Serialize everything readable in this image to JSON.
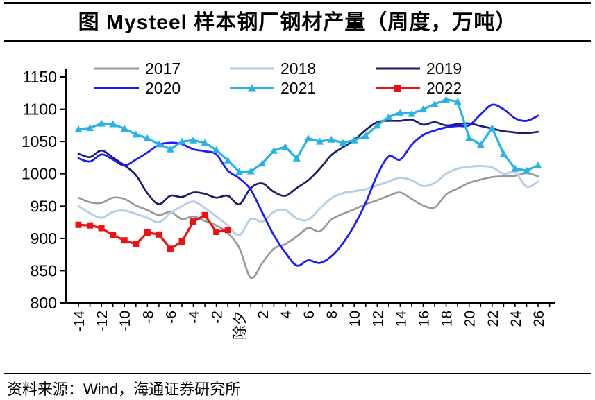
{
  "figure": {
    "title": "图 Mysteel 样本钢厂钢材产量（周度，万吨）",
    "source": "资料来源：Wind，海通证券研究所"
  },
  "chart_data": {
    "type": "line",
    "title": "图 Mysteel 样本钢厂钢材产量（周度，万吨）",
    "xlabel": "",
    "ylabel": "",
    "x_axis": {
      "min": -14,
      "max": 27,
      "unit": "weeks relative to Chinese New Year's Eve",
      "zero_label": "除夕",
      "major_tick_step": 2,
      "minor_tick_step": 1
    },
    "x_major_ticks": [
      -14,
      -12,
      -10,
      -8,
      -6,
      -4,
      -2,
      0,
      2,
      4,
      6,
      8,
      10,
      12,
      14,
      16,
      18,
      20,
      22,
      24,
      26
    ],
    "ylim": [
      800,
      1150
    ],
    "y_ticks": [
      800,
      850,
      900,
      950,
      1000,
      1050,
      1100,
      1150
    ],
    "grid": false,
    "legend_position": "top",
    "series": [
      {
        "name": "2017",
        "color": "#999999",
        "marker": "none",
        "line_width": 2.7,
        "x_start": -14,
        "values": [
          963,
          956,
          955,
          963,
          961,
          951,
          944,
          936,
          941,
          930,
          934,
          927,
          920,
          908,
          885,
          839,
          862,
          884,
          891,
          903,
          916,
          911,
          929,
          938,
          945,
          953,
          959,
          966,
          971,
          961,
          951,
          948,
          968,
          977,
          986,
          991,
          995,
          996,
          997,
          1001,
          996
        ]
      },
      {
        "name": "2018",
        "color": "#b4cfe6",
        "marker": "none",
        "line_width": 3.0,
        "x_start": -14,
        "values": [
          950,
          939,
          932,
          941,
          943,
          938,
          932,
          925,
          939,
          950,
          957,
          947,
          934,
          920,
          905,
          930,
          926,
          941,
          944,
          931,
          929,
          946,
          962,
          970,
          973,
          976,
          982,
          988,
          994,
          990,
          981,
          986,
          1000,
          1008,
          1011,
          1012,
          1010,
          1000,
          1002,
          980,
          988
        ]
      },
      {
        "name": "2019",
        "color": "#1a1a6e",
        "marker": "none",
        "line_width": 2.7,
        "x_start": -14,
        "values": [
          1031,
          1026,
          1036,
          1025,
          1013,
          998,
          970,
          953,
          966,
          964,
          971,
          969,
          963,
          966,
          953,
          978,
          985,
          972,
          966,
          978,
          990,
          1008,
          1029,
          1041,
          1052,
          1068,
          1080,
          1082,
          1082,
          1084,
          1076,
          1080,
          1075,
          1077,
          1078,
          1074,
          1070,
          1066,
          1064,
          1063,
          1065
        ]
      },
      {
        "name": "2020",
        "color": "#1a1aff",
        "marker": "none",
        "line_width": 2.8,
        "x_start": -14,
        "values": [
          1024,
          1019,
          1030,
          1022,
          1013,
          1022,
          1033,
          1045,
          1048,
          1046,
          1038,
          1035,
          1030,
          1005,
          993,
          975,
          940,
          905,
          878,
          858,
          866,
          862,
          872,
          892,
          920,
          955,
          998,
          1027,
          1022,
          1045,
          1060,
          1067,
          1072,
          1074,
          1075,
          1092,
          1107,
          1100,
          1086,
          1082,
          1090
        ]
      },
      {
        "name": "2021",
        "color": "#29b2e6",
        "marker": "triangle",
        "line_width": 3.2,
        "x_start": -14,
        "values": [
          1069,
          1071,
          1078,
          1077,
          1070,
          1061,
          1055,
          1046,
          1038,
          1050,
          1052,
          1048,
          1037,
          1021,
          1003,
          1004,
          1016,
          1036,
          1042,
          1024,
          1055,
          1050,
          1053,
          1048,
          1052,
          1059,
          1075,
          1088,
          1095,
          1093,
          1100,
          1108,
          1115,
          1112,
          1056,
          1045,
          1071,
          1031,
          1008,
          1005,
          1013
        ]
      },
      {
        "name": "2022",
        "color": "#ee1111",
        "marker": "square",
        "line_width": 3.2,
        "x_start": -14,
        "values": [
          921,
          920,
          916,
          905,
          897,
          891,
          909,
          906,
          884,
          895,
          926,
          936,
          910,
          913
        ]
      }
    ]
  }
}
